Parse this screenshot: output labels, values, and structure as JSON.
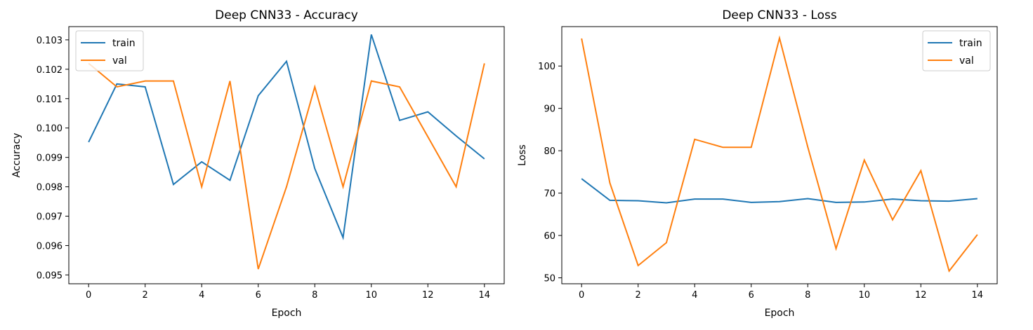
{
  "chart_data": [
    {
      "type": "line",
      "title": "Deep CNN33 - Accuracy",
      "xlabel": "Epoch",
      "ylabel": "Accuracy",
      "xlim": [
        -0.7,
        14.7
      ],
      "ylim": [
        0.0947,
        0.10345
      ],
      "xticks": [
        0,
        2,
        4,
        6,
        8,
        10,
        12,
        14
      ],
      "xtick_labels": [
        "0",
        "2",
        "4",
        "6",
        "8",
        "10",
        "12",
        "14"
      ],
      "yticks": [
        0.095,
        0.096,
        0.097,
        0.098,
        0.099,
        0.1,
        0.101,
        0.102,
        0.103
      ],
      "ytick_labels": [
        "0.095",
        "0.096",
        "0.097",
        "0.098",
        "0.099",
        "0.100",
        "0.101",
        "0.102",
        "0.103"
      ],
      "grid": false,
      "legend": "upper left",
      "x": [
        0,
        1,
        2,
        3,
        4,
        5,
        6,
        7,
        8,
        9,
        10,
        11,
        12,
        13,
        14
      ],
      "series": [
        {
          "name": "train",
          "color": "#1f77b4",
          "values": [
            0.09952,
            0.1015,
            0.1014,
            0.09808,
            0.09885,
            0.09822,
            0.1011,
            0.10227,
            0.09862,
            0.09627,
            0.10318,
            0.10026,
            0.10055,
            0.09973,
            0.09895
          ]
        },
        {
          "name": "val",
          "color": "#ff7f0e",
          "values": [
            0.1022,
            0.1014,
            0.1016,
            0.1016,
            0.098,
            0.1016,
            0.0952,
            0.098,
            0.1014,
            0.098,
            0.1016,
            0.1014,
            0.0997,
            0.098,
            0.1022
          ]
        }
      ]
    },
    {
      "type": "line",
      "title": "Deep CNN33 - Loss",
      "xlabel": "Epoch",
      "ylabel": "Loss",
      "xlim": [
        -0.7,
        14.7
      ],
      "ylim": [
        48.6,
        109.3
      ],
      "xticks": [
        0,
        2,
        4,
        6,
        8,
        10,
        12,
        14
      ],
      "xtick_labels": [
        "0",
        "2",
        "4",
        "6",
        "8",
        "10",
        "12",
        "14"
      ],
      "yticks": [
        50,
        60,
        70,
        80,
        90,
        100
      ],
      "ytick_labels": [
        "50",
        "60",
        "70",
        "80",
        "90",
        "100"
      ],
      "grid": false,
      "legend": "upper right",
      "x": [
        0,
        1,
        2,
        3,
        4,
        5,
        6,
        7,
        8,
        9,
        10,
        11,
        12,
        13,
        14
      ],
      "series": [
        {
          "name": "train",
          "color": "#1f77b4",
          "values": [
            73.4,
            68.3,
            68.2,
            67.7,
            68.6,
            68.6,
            67.8,
            68.0,
            68.7,
            67.8,
            67.9,
            68.6,
            68.2,
            68.1,
            68.7
          ]
        },
        {
          "name": "val",
          "color": "#ff7f0e",
          "values": [
            106.5,
            72.4,
            52.9,
            58.3,
            82.7,
            80.8,
            80.8,
            106.6,
            80.9,
            56.9,
            77.8,
            63.7,
            75.3,
            51.6,
            60.2
          ]
        }
      ]
    }
  ]
}
